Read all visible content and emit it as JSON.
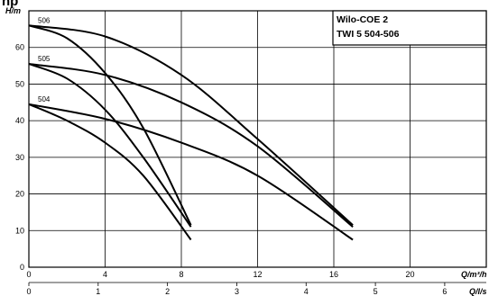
{
  "chart_data": {
    "type": "line",
    "title": "",
    "legend_lines": [
      "Wilo-COE 2",
      "TWI 5 504-506"
    ],
    "legend_placement": "top-right",
    "clipped_title_fragment": "np",
    "grid": true,
    "ylabel": "H/m",
    "xlabel_primary": "Q/m³/h",
    "xlabel_secondary": "Q/l/s",
    "xlim": [
      0,
      24
    ],
    "ylim": [
      0,
      70
    ],
    "x_ticks": [
      0,
      4,
      8,
      12,
      16,
      20
    ],
    "y_ticks": [
      0,
      10,
      20,
      30,
      40,
      50,
      60
    ],
    "x2_ticks": [
      0,
      1,
      2,
      3,
      4,
      5,
      6
    ],
    "series": [
      {
        "name": "504",
        "curves": [
          {
            "x": [
              0,
              2,
              4,
              6,
              8.5
            ],
            "y": [
              44.5,
              40,
              34,
              25,
              7.5
            ]
          },
          {
            "x": [
              0,
              4,
              8,
              12,
              17
            ],
            "y": [
              44.5,
              40.5,
              34,
              25,
              7.5
            ]
          }
        ]
      },
      {
        "name": "505",
        "curves": [
          {
            "x": [
              0,
              2,
              4,
              6,
              8.5
            ],
            "y": [
              55.5,
              51.5,
              43,
              30,
              11
            ]
          },
          {
            "x": [
              0,
              4,
              8,
              12,
              17
            ],
            "y": [
              55.5,
              52.5,
              45,
              33,
              11
            ]
          }
        ]
      },
      {
        "name": "506",
        "curves": [
          {
            "x": [
              0,
              2,
              4,
              6,
              8.5
            ],
            "y": [
              66,
              62.5,
              53,
              38,
              11.5
            ]
          },
          {
            "x": [
              0,
              4,
              8,
              12,
              17
            ],
            "y": [
              66,
              63,
              52.5,
              35,
              11.5
            ]
          }
        ]
      }
    ]
  }
}
